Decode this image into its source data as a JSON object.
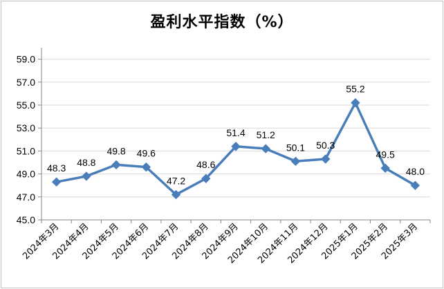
{
  "chart_data": {
    "type": "line",
    "title": "盈利水平指数（%）",
    "categories": [
      "2024年3月",
      "2024年4月",
      "2024年5月",
      "2024年6月",
      "2024年7月",
      "2024年8月",
      "2024年9月",
      "2024年10月",
      "2024年11月",
      "2024年12月",
      "2025年1月",
      "2025年2月",
      "2025年3月"
    ],
    "series": [
      {
        "values": [
          48.3,
          48.8,
          49.8,
          49.6,
          47.2,
          48.6,
          51.4,
          51.2,
          50.1,
          50.3,
          55.2,
          49.5,
          48.0
        ]
      }
    ],
    "data_labels": [
      "48.3",
      "48.8",
      "49.8",
      "49.6",
      "47.2",
      "48.6",
      "51.4",
      "51.2",
      "50.1",
      "50.3",
      "55.2",
      "49.5",
      "48.0"
    ],
    "y_ticks": [
      "45.0",
      "47.0",
      "49.0",
      "51.0",
      "53.0",
      "55.0",
      "57.0",
      "59.0"
    ],
    "ylim": [
      45,
      60
    ],
    "grid": true,
    "legend": "none",
    "colors": {
      "line": "#4a7ebb",
      "marker": "#4a7ebb",
      "grid": "#d9d9d9",
      "axis": "#868686"
    }
  }
}
